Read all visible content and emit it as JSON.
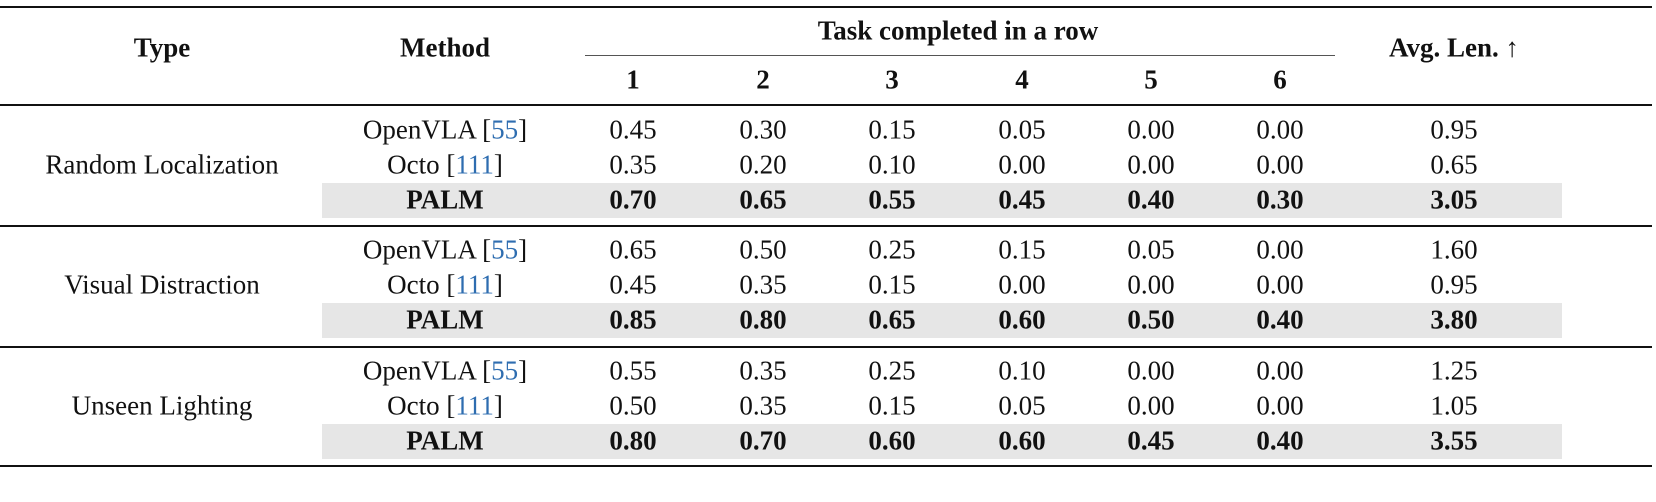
{
  "header": {
    "type": "Type",
    "method": "Method",
    "group": "Task completed in a row",
    "cols": [
      "1",
      "2",
      "3",
      "4",
      "5",
      "6"
    ],
    "avg": "Avg. Len. ↑"
  },
  "groups": [
    {
      "type": "Random Localization",
      "rows": [
        {
          "method": "OpenVLA",
          "cite": "55",
          "vals": [
            "0.45",
            "0.30",
            "0.15",
            "0.05",
            "0.00",
            "0.00"
          ],
          "avg": "0.95"
        },
        {
          "method": "Octo",
          "cite": "111",
          "vals": [
            "0.35",
            "0.20",
            "0.10",
            "0.00",
            "0.00",
            "0.00"
          ],
          "avg": "0.65"
        },
        {
          "method": "PALM",
          "vals": [
            "0.70",
            "0.65",
            "0.55",
            "0.45",
            "0.40",
            "0.30"
          ],
          "avg": "3.05"
        }
      ]
    },
    {
      "type": "Visual Distraction",
      "rows": [
        {
          "method": "OpenVLA",
          "cite": "55",
          "vals": [
            "0.65",
            "0.50",
            "0.25",
            "0.15",
            "0.05",
            "0.00"
          ],
          "avg": "1.60"
        },
        {
          "method": "Octo",
          "cite": "111",
          "vals": [
            "0.45",
            "0.35",
            "0.15",
            "0.00",
            "0.00",
            "0.00"
          ],
          "avg": "0.95"
        },
        {
          "method": "PALM",
          "vals": [
            "0.85",
            "0.80",
            "0.65",
            "0.60",
            "0.50",
            "0.40"
          ],
          "avg": "3.80"
        }
      ]
    },
    {
      "type": "Unseen Lighting",
      "rows": [
        {
          "method": "OpenVLA",
          "cite": "55",
          "vals": [
            "0.55",
            "0.35",
            "0.25",
            "0.10",
            "0.00",
            "0.00"
          ],
          "avg": "1.25"
        },
        {
          "method": "Octo",
          "cite": "111",
          "vals": [
            "0.50",
            "0.35",
            "0.15",
            "0.05",
            "0.00",
            "0.00"
          ],
          "avg": "1.05"
        },
        {
          "method": "PALM",
          "vals": [
            "0.80",
            "0.70",
            "0.60",
            "0.60",
            "0.45",
            "0.40"
          ],
          "avg": "3.55"
        }
      ]
    }
  ]
}
